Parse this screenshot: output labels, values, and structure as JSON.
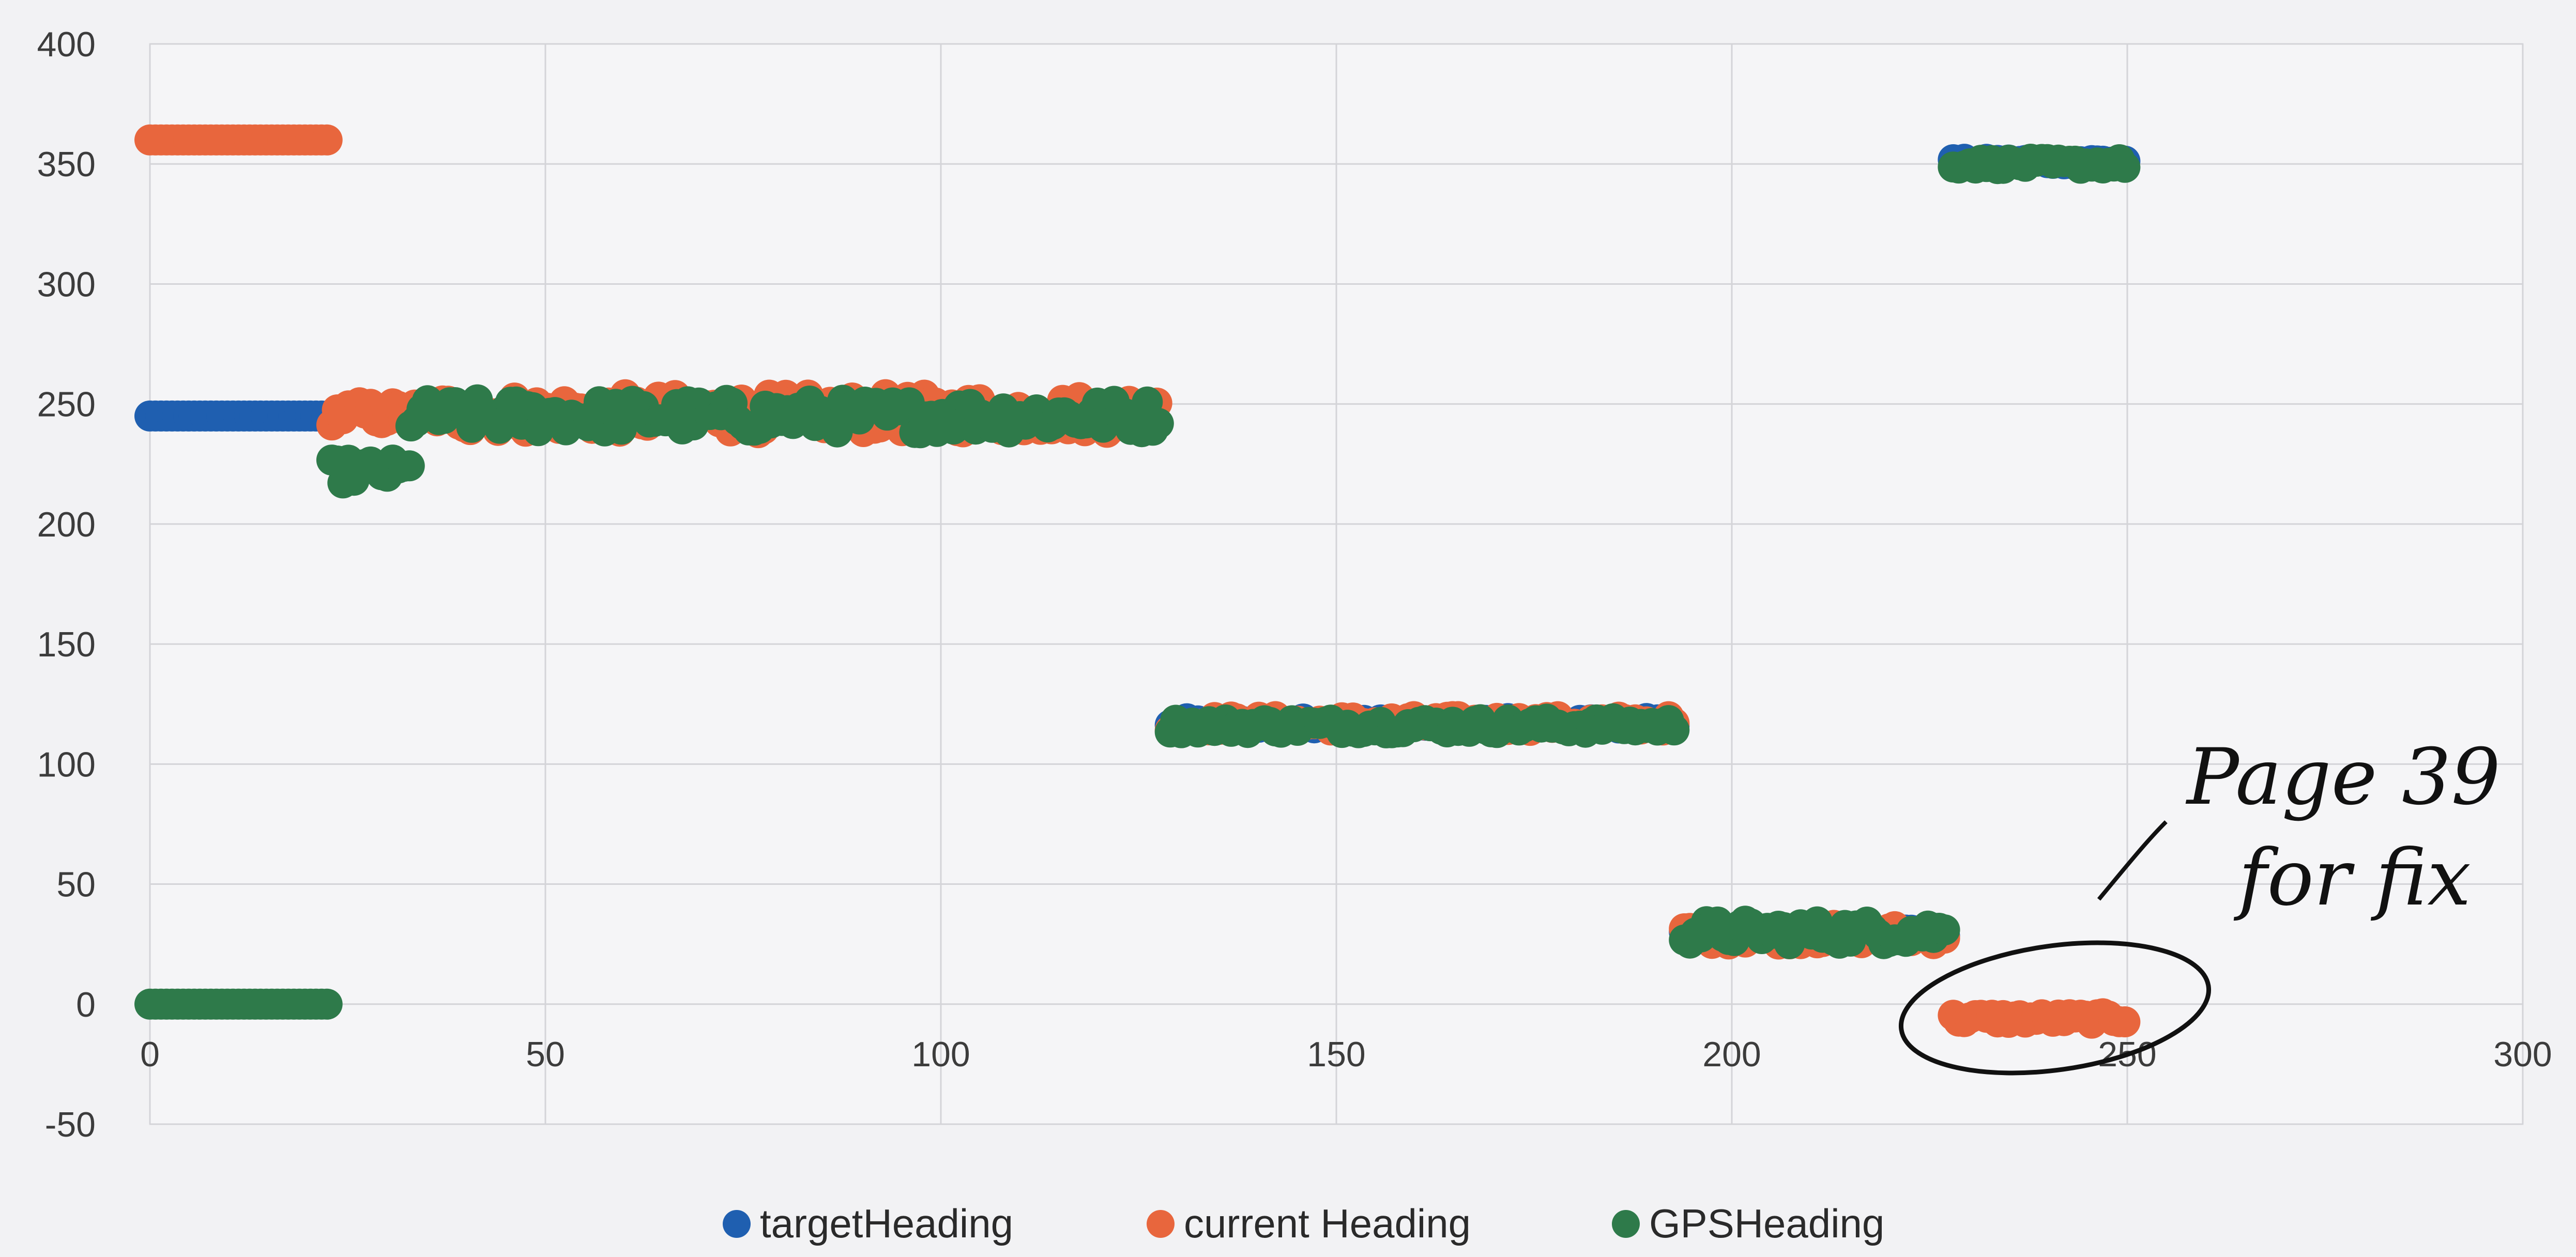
{
  "chart_data": {
    "type": "scatter",
    "xlim": [
      0,
      300
    ],
    "ylim": [
      -50,
      400
    ],
    "x_ticks": [
      0,
      50,
      100,
      150,
      200,
      250,
      300
    ],
    "y_ticks": [
      400,
      350,
      300,
      250,
      200,
      150,
      100,
      50,
      0,
      -50
    ],
    "grid": true,
    "legend_position": "bottom",
    "colors": {
      "targetHeading": "#1f5fb0",
      "currentHeading": "#e8663d",
      "GPSHeading": "#2e7a4a"
    },
    "series": [
      {
        "name": "targetHeading",
        "segments": [
          {
            "x_start": 0,
            "x_end": 23,
            "value": 245,
            "noise": 0
          },
          {
            "x_start": 129,
            "x_end": 193,
            "value": 117,
            "noise": 2
          },
          {
            "x_start": 194,
            "x_end": 227,
            "value": 30,
            "noise": 2
          },
          {
            "x_start": 228,
            "x_end": 250,
            "value": 351,
            "noise": 1
          }
        ]
      },
      {
        "name": "current Heading",
        "segments": [
          {
            "x_start": 0,
            "x_end": 23,
            "value": 360,
            "noise": 0
          },
          {
            "x_start": 23,
            "x_end": 37,
            "value": 246,
            "noise": 5
          },
          {
            "x_start": 37,
            "x_end": 128,
            "value": 246,
            "noise": 8
          },
          {
            "x_start": 129,
            "x_end": 193,
            "value": 117,
            "noise": 3
          },
          {
            "x_start": 194,
            "x_end": 227,
            "value": 29,
            "noise": 4
          },
          {
            "x_start": 228,
            "x_end": 250,
            "value": -6,
            "noise": 2
          }
        ]
      },
      {
        "name": "GPSHeading",
        "segments": [
          {
            "x_start": 0,
            "x_end": 23,
            "value": 0,
            "noise": 0
          },
          {
            "x_start": 23,
            "x_end": 33,
            "value": 222,
            "noise": 5
          },
          {
            "x_start": 33,
            "x_end": 128,
            "value": 245,
            "noise": 7
          },
          {
            "x_start": 129,
            "x_end": 193,
            "value": 116,
            "noise": 3
          },
          {
            "x_start": 194,
            "x_end": 227,
            "value": 30,
            "noise": 5
          },
          {
            "x_start": 228,
            "x_end": 250,
            "value": 350,
            "noise": 2
          }
        ]
      }
    ],
    "annotations": [
      {
        "text_line1": "Page 39",
        "text_line2": "for fix"
      }
    ]
  }
}
